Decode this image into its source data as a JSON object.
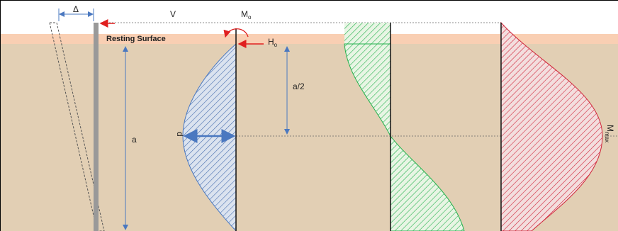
{
  "labels": {
    "delta": "Δ",
    "v": "V",
    "mo": {
      "main": "M",
      "sub": "o"
    },
    "resting_surface": "Resting Surface",
    "ho": {
      "main": "H",
      "sub": "o"
    },
    "a_half": "a/2",
    "a": "a",
    "d": "d",
    "mmax": {
      "main": "M",
      "sub": "max"
    }
  }
}
